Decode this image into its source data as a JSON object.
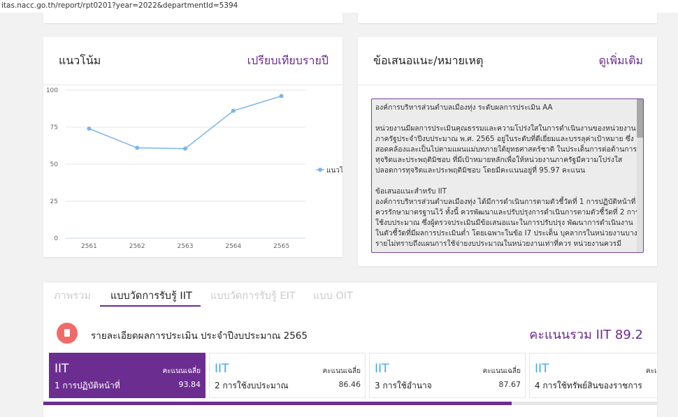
{
  "address_bar": {
    "url": "itas.nacc.go.th/report/rpt0201?year=2022&departmentId=5394"
  },
  "trend_card": {
    "title": "แนวโน้ม",
    "link": "เปรียบเทียบรายปี",
    "chart": {
      "type": "line",
      "categories": [
        "2561",
        "2562",
        "2563",
        "2564",
        "2565"
      ],
      "series": [
        {
          "name": "แนวโน้ม",
          "color": "#7cb5ec",
          "values": [
            74,
            61,
            60.5,
            86,
            96
          ]
        }
      ],
      "ylim": [
        0,
        100
      ],
      "yticks": [
        0,
        25,
        50,
        75,
        100
      ],
      "grid": true,
      "legend": "right"
    }
  },
  "note_card": {
    "title": "ข้อเสนอแนะ/หมายเหตุ",
    "link": "ดูเพิ่มเติม",
    "paragraphs": [
      "องค์การบริหารส่วนตำบลเมืองทุ่ง ระดับผลการประเมิน AA",
      "หน่วยงานมีผลการประเมินคุณธรรมและความโปร่งใสในการดำเนินงานของหน่วยงานภาครัฐประจำปีงบประมาณ พ.ศ. 2565 อยู่ในระดับที่ดีเยี่ยมและบรรลุค่าเป้าหมาย ซึ่งสอดคล้องและเป็นไปตามแผนแม่บทภายใต้ยุทธศาสตร์ชาติ ในประเด็นการต่อต้านการทุจริตและประพฤติมิชอบ ที่มีเป้าหมายหลักเพื่อให้หน่วยงานภาครัฐมีความโปร่งใส ปลอดการทุจริตและประพฤติมิชอบ โดยมีคะแนนอยู่ที่ 95.97 คะแนน",
      "ข้อเสนอแนะสำหรับ IIT",
      "องค์การบริหารส่วนตำบลเมืองทุ่ง ได้มีการดำเนินการตามตัวชี้วัดที่ 1 การปฏิบัติหน้าที่ ควรรักษามาตรฐานไว้ ทั้งนี้ ควรพัฒนาและปรับปรุงการดำเนินการตามตัวชี้วัดที่ 2 การใช้งบประมาณ ซึ่งผู้ตรวจประเมินมีข้อเสนอแนะในการปรับปรุง พัฒนาการดำเนินงานในตัวชี้วัดที่มีผลการประเมินต่ำ โดยเฉพาะในข้อ I7 ประเด็น บุคลากรในหน่วยงานบางรายไม่ทราบถึงแผนการใช้จ่ายงบประมาณในหน่วยงานเท่าที่ควร หน่วยงานควรมี"
    ]
  },
  "tabs": [
    "ภาพรวม",
    "แบบวัดการรับรู้ IIT",
    "แบบวัดการรับรู้ EIT",
    "แบบ OIT"
  ],
  "detail": {
    "title": "รายละเอียดผลการประเมิน ประจำปีงบประมาณ 2565",
    "score_label": "คะแนนรวม IIT",
    "score": 89.2
  },
  "indicators": [
    {
      "tag": "IIT",
      "avg_label": "คะแนนเฉลี่ย",
      "name": "1 การปฏิบัติหน้าที่",
      "score": 93.84
    },
    {
      "tag": "IIT",
      "avg_label": "คะแนนเฉลี่ย",
      "name": "2 การใช้งบประมาณ",
      "score": 86.46
    },
    {
      "tag": "IIT",
      "avg_label": "คะแนนเฉลี่ย",
      "name": "3 การใช้อำนาจ",
      "score": 87.67
    },
    {
      "tag": "IIT",
      "avg_label": "คะแนนเฉลี่ย",
      "name": "4 การใช้ทรัพย์สินของราชการ"
    }
  ]
}
